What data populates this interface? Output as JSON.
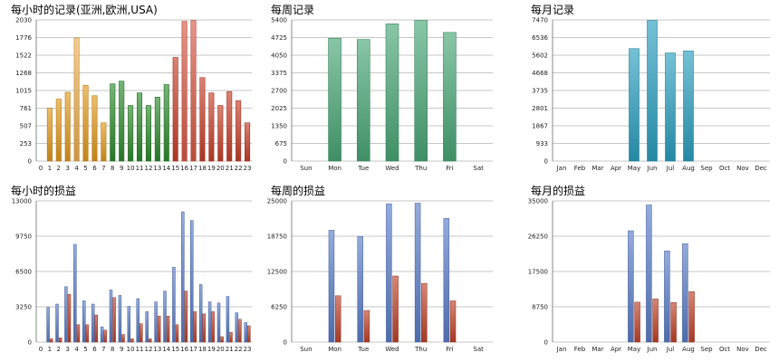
{
  "chart_data": [
    {
      "id": "hourly-records",
      "type": "bar",
      "title": "每小时的记录(亚洲,欧洲,USA)",
      "categories": [
        "0",
        "1",
        "2",
        "3",
        "4",
        "5",
        "6",
        "7",
        "8",
        "9",
        "10",
        "11",
        "12",
        "13",
        "14",
        "15",
        "16",
        "17",
        "18",
        "19",
        "20",
        "21",
        "22",
        "23"
      ],
      "y_ticks": [
        "0",
        "253",
        "507",
        "761",
        "1015",
        "1268",
        "1522",
        "1776",
        "2030"
      ],
      "ylim": [
        0,
        2030
      ],
      "values": [
        0,
        760,
        890,
        990,
        1770,
        1090,
        940,
        550,
        1110,
        1150,
        800,
        980,
        800,
        920,
        1100,
        1490,
        2010,
        2020,
        1200,
        980,
        800,
        1000,
        870,
        550
      ],
      "bar_colors": [
        "#e39a1c",
        "#e39a1c",
        "#e39a1c",
        "#e39a1c",
        "#f0b050",
        "#e39a1c",
        "#e39a1c",
        "#e39a1c",
        "#2e8b2e",
        "#2e8b2e",
        "#2e8b2e",
        "#2e8b2e",
        "#2e8b2e",
        "#2e8b2e",
        "#2e8b2e",
        "#c8402a",
        "#d85a46",
        "#d85a46",
        "#c8402a",
        "#c8402a",
        "#c8402a",
        "#c8402a",
        "#c8402a",
        "#c8402a"
      ]
    },
    {
      "id": "weekly-records",
      "type": "bar",
      "title": "每周记录",
      "categories": [
        "Sun",
        "Mon",
        "Tue",
        "Wed",
        "Thu",
        "Fri",
        "Sat"
      ],
      "y_ticks": [
        "0",
        "675",
        "1350",
        "2025",
        "2700",
        "3375",
        "4050",
        "4725",
        "5400"
      ],
      "ylim": [
        0,
        5400
      ],
      "values": [
        0,
        4700,
        4650,
        5250,
        5380,
        4920,
        0
      ],
      "bar_color": "#4aa877"
    },
    {
      "id": "monthly-records",
      "type": "bar",
      "title": "每月记录",
      "categories": [
        "Jan",
        "Feb",
        "Mar",
        "Apr",
        "May",
        "Jun",
        "Jul",
        "Aug",
        "Sep",
        "Oct",
        "Nov",
        "Dec"
      ],
      "y_ticks": [
        "0",
        "933",
        "1867",
        "2801",
        "3735",
        "4668",
        "5602",
        "6536",
        "7470"
      ],
      "ylim": [
        0,
        7470
      ],
      "values": [
        0,
        0,
        0,
        0,
        5950,
        7440,
        5720,
        5830,
        0,
        0,
        0,
        0
      ],
      "bar_color": "#2aa0c0"
    },
    {
      "id": "hourly-profit",
      "type": "bar",
      "title": "每小时的损益",
      "categories": [
        "0",
        "1",
        "2",
        "3",
        "4",
        "5",
        "6",
        "7",
        "8",
        "9",
        "10",
        "11",
        "12",
        "13",
        "14",
        "15",
        "16",
        "17",
        "18",
        "19",
        "20",
        "21",
        "22",
        "23"
      ],
      "y_ticks": [
        "0",
        "3250",
        "6500",
        "9750",
        "13000"
      ],
      "ylim": [
        0,
        13000
      ],
      "series": [
        {
          "color": "#5b7ec9",
          "values": [
            0,
            3200,
            3500,
            5100,
            9000,
            3800,
            3500,
            1400,
            4800,
            4300,
            3300,
            4000,
            2800,
            3700,
            4700,
            6900,
            12000,
            11200,
            5300,
            3700,
            3600,
            4200,
            2700,
            1800
          ]
        },
        {
          "color": "#c0432a",
          "values": [
            0,
            300,
            400,
            4400,
            1600,
            1600,
            2500,
            1100,
            4100,
            700,
            300,
            1700,
            300,
            2400,
            2400,
            1600,
            4700,
            2800,
            2600,
            2800,
            500,
            900,
            2100,
            1500
          ]
        }
      ]
    },
    {
      "id": "weekly-profit",
      "type": "bar",
      "title": "每周的损益",
      "categories": [
        "Sun",
        "Mon",
        "Tue",
        "Wed",
        "Thu",
        "Fri",
        "Sat"
      ],
      "y_ticks": [
        "0",
        "6250",
        "12500",
        "18750",
        "25000"
      ],
      "ylim": [
        0,
        25000
      ],
      "series": [
        {
          "color": "#5b7ec9",
          "values": [
            0,
            19800,
            18700,
            24500,
            24600,
            21900,
            0
          ]
        },
        {
          "color": "#c0432a",
          "values": [
            0,
            8200,
            5600,
            11700,
            10400,
            7300,
            0
          ]
        }
      ]
    },
    {
      "id": "monthly-profit",
      "type": "bar",
      "title": "每月的损益",
      "categories": [
        "Jan",
        "Feb",
        "Mar",
        "Apr",
        "May",
        "Jun",
        "Jul",
        "Aug",
        "Sep",
        "Oct",
        "Nov",
        "Dec"
      ],
      "y_ticks": [
        "0",
        "8750",
        "17500",
        "26250",
        "35000"
      ],
      "ylim": [
        0,
        35000
      ],
      "series": [
        {
          "color": "#5b7ec9",
          "values": [
            0,
            0,
            0,
            0,
            27600,
            34000,
            22600,
            24400,
            0,
            0,
            0,
            0
          ]
        },
        {
          "color": "#c0432a",
          "values": [
            0,
            0,
            0,
            0,
            9900,
            10700,
            9800,
            12500,
            0,
            0,
            0,
            0
          ]
        }
      ]
    }
  ]
}
